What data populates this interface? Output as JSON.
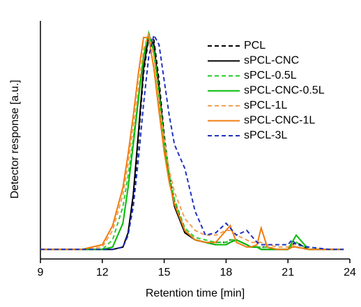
{
  "chart_data": {
    "type": "line",
    "x_label": "Retention time [min]",
    "y_label": "Detector response [a.u.]",
    "xlim": [
      9,
      24
    ],
    "xticks": [
      9,
      12,
      15,
      18,
      21,
      24
    ],
    "ylim": [
      0,
      1
    ],
    "legend_position": "upper right",
    "x": [
      9,
      10,
      11,
      12,
      12.5,
      13,
      13.25,
      13.5,
      13.75,
      14,
      14.25,
      14.5,
      14.75,
      15,
      15.25,
      15.5,
      16,
      16.5,
      17,
      17.5,
      18,
      18.2,
      18.5,
      19,
      19.2,
      19.5,
      19.7,
      20,
      20.5,
      21,
      21.2,
      21.4,
      22,
      23,
      23.7
    ],
    "series": [
      {
        "name": "PCL",
        "color": "#000000",
        "linestyle": "dashed",
        "values": [
          0.04,
          0.04,
          0.04,
          0.04,
          0.04,
          0.05,
          0.1,
          0.25,
          0.5,
          0.78,
          0.93,
          0.92,
          0.75,
          0.52,
          0.35,
          0.24,
          0.12,
          0.08,
          0.07,
          0.07,
          0.07,
          0.08,
          0.08,
          0.06,
          0.05,
          0.05,
          0.05,
          0.05,
          0.04,
          0.04,
          0.05,
          0.05,
          0.04,
          0.04,
          0.04
        ]
      },
      {
        "name": "sPCL-CNC",
        "color": "#000000",
        "linestyle": "solid",
        "values": [
          0.04,
          0.04,
          0.04,
          0.04,
          0.04,
          0.05,
          0.11,
          0.27,
          0.53,
          0.8,
          0.94,
          0.9,
          0.72,
          0.5,
          0.33,
          0.22,
          0.11,
          0.08,
          0.07,
          0.06,
          0.06,
          0.07,
          0.08,
          0.06,
          0.05,
          0.05,
          0.04,
          0.04,
          0.04,
          0.04,
          0.06,
          0.07,
          0.04,
          0.04,
          0.04
        ]
      },
      {
        "name": "sPCL-0.5L",
        "color": "#33cc33",
        "linestyle": "dashed",
        "values": [
          0.04,
          0.04,
          0.04,
          0.04,
          0.08,
          0.22,
          0.35,
          0.5,
          0.68,
          0.85,
          0.95,
          0.88,
          0.7,
          0.5,
          0.35,
          0.25,
          0.13,
          0.09,
          0.08,
          0.07,
          0.07,
          0.08,
          0.08,
          0.06,
          0.05,
          0.05,
          0.05,
          0.05,
          0.04,
          0.04,
          0.06,
          0.07,
          0.04,
          0.04,
          0.04
        ]
      },
      {
        "name": "sPCL-CNC-0.5L",
        "color": "#00bb00",
        "linestyle": "solid",
        "values": [
          0.04,
          0.04,
          0.04,
          0.04,
          0.05,
          0.15,
          0.3,
          0.48,
          0.67,
          0.85,
          0.95,
          0.87,
          0.68,
          0.48,
          0.33,
          0.23,
          0.12,
          0.08,
          0.07,
          0.06,
          0.06,
          0.07,
          0.08,
          0.06,
          0.05,
          0.05,
          0.04,
          0.04,
          0.04,
          0.04,
          0.07,
          0.1,
          0.04,
          0.04,
          0.04
        ]
      },
      {
        "name": "sPCL-1L",
        "color": "#f5a050",
        "linestyle": "dashed",
        "values": [
          0.04,
          0.04,
          0.04,
          0.05,
          0.12,
          0.27,
          0.4,
          0.55,
          0.72,
          0.88,
          0.95,
          0.85,
          0.67,
          0.5,
          0.37,
          0.28,
          0.17,
          0.12,
          0.1,
          0.1,
          0.12,
          0.12,
          0.1,
          0.08,
          0.07,
          0.07,
          0.07,
          0.06,
          0.05,
          0.05,
          0.06,
          0.05,
          0.04,
          0.04,
          0.04
        ]
      },
      {
        "name": "sPCL-CNC-1L",
        "color": "#f07c10",
        "linestyle": "solid",
        "values": [
          0.04,
          0.04,
          0.04,
          0.06,
          0.14,
          0.3,
          0.44,
          0.6,
          0.78,
          0.93,
          0.93,
          0.8,
          0.62,
          0.45,
          0.32,
          0.23,
          0.12,
          0.08,
          0.07,
          0.07,
          0.12,
          0.14,
          0.07,
          0.05,
          0.05,
          0.06,
          0.13,
          0.05,
          0.04,
          0.04,
          0.05,
          0.05,
          0.04,
          0.04,
          0.04
        ]
      },
      {
        "name": "sPCL-3L",
        "color": "#2030c0",
        "linestyle": "dashed",
        "values": [
          0.04,
          0.04,
          0.04,
          0.04,
          0.04,
          0.05,
          0.1,
          0.22,
          0.42,
          0.65,
          0.85,
          0.94,
          0.9,
          0.75,
          0.6,
          0.48,
          0.38,
          0.2,
          0.1,
          0.11,
          0.15,
          0.13,
          0.1,
          0.12,
          0.1,
          0.07,
          0.06,
          0.06,
          0.06,
          0.06,
          0.08,
          0.06,
          0.05,
          0.04,
          0.04
        ]
      }
    ]
  }
}
